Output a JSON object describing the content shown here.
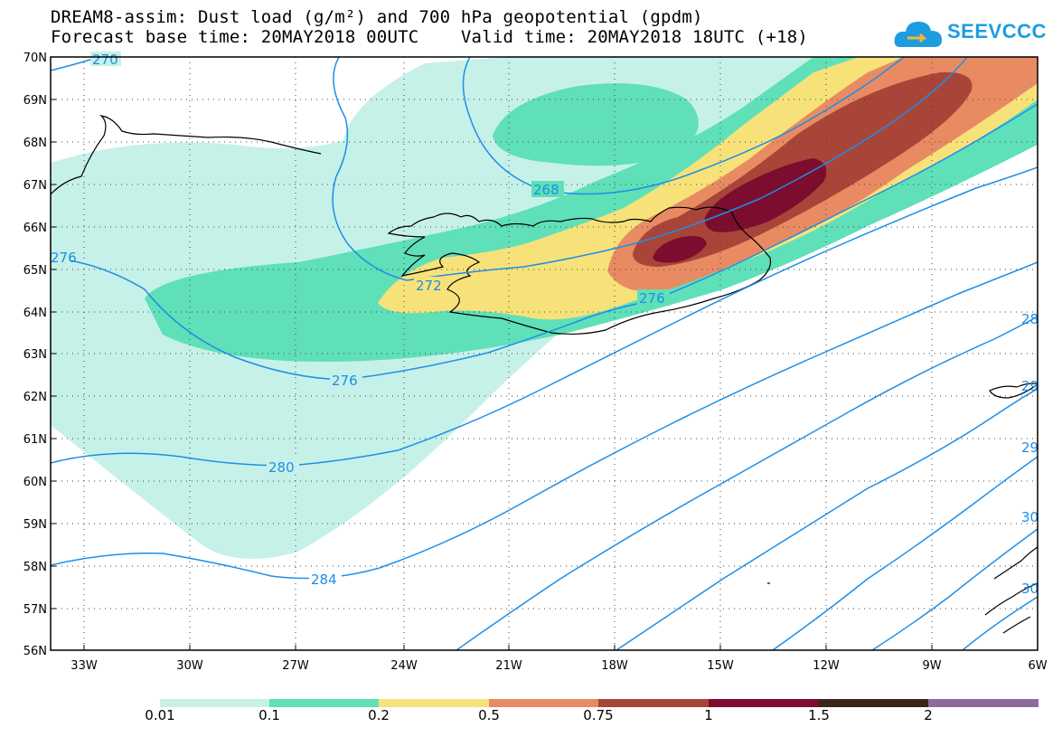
{
  "title": {
    "line1": "DREAM8-assim: Dust load (g/m²) and 700 hPa geopotential (gpdm)",
    "line2": "Forecast base time: 20MAY2018 00UTC    Valid time: 20MAY2018 18UTC (+18)"
  },
  "logo": {
    "text": "SEEVCCC",
    "icon": "cloud-icon",
    "color": "#1e9ce0"
  },
  "axes": {
    "lat_labels": [
      "70N",
      "69N",
      "68N",
      "67N",
      "66N",
      "65N",
      "64N",
      "63N",
      "62N",
      "61N",
      "60N",
      "59N",
      "58N",
      "57N",
      "56N"
    ],
    "lon_labels": [
      "33W",
      "30W",
      "27W",
      "24W",
      "21W",
      "18W",
      "15W",
      "12W",
      "9W",
      "6W"
    ],
    "lat_range": [
      56,
      70
    ],
    "lon_range": [
      -34.5,
      -6
    ],
    "grid": "dotted"
  },
  "contours": {
    "units": "gpdm",
    "color": "#1e8ee6",
    "labels": [
      "270",
      "268",
      "276",
      "272",
      "276",
      "276",
      "280",
      "284",
      "28",
      "29",
      "29",
      "30",
      "30"
    ]
  },
  "legend": {
    "labels": [
      "0.01",
      "0.1",
      "0.2",
      "0.5",
      "0.75",
      "1",
      "1.5",
      "2"
    ],
    "colors": [
      "#c6f1e9",
      "#5fe0b8",
      "#f7e27a",
      "#e98b62",
      "#a94538",
      "#7c0d2e",
      "#3a2618",
      "#8f6a9e"
    ]
  }
}
